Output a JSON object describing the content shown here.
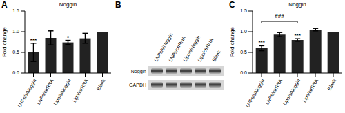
{
  "chart_data": [
    {
      "panel": "A",
      "type": "bar",
      "title": "Noggin",
      "y_label": "Fold change",
      "categories": [
        "LNPs/siNoggin",
        "LNPs/ctrRNA",
        "Lipo/siNoggin",
        "Lipo/ctrRNA",
        "Blank"
      ],
      "values": [
        0.5,
        0.85,
        0.74,
        0.84,
        1.0
      ],
      "errors": [
        0.22,
        0.17,
        0.05,
        0.12,
        0
      ],
      "annotations": [
        "***",
        null,
        "*",
        null,
        null
      ],
      "color": "#222222",
      "ylim": [
        0,
        1.5
      ],
      "yticks": [
        {
          "value": 0,
          "label": "0.0"
        },
        {
          "value": 0.5,
          "label": "0.5"
        },
        {
          "value": 1,
          "label": "1.0"
        },
        {
          "value": 1.5,
          "label": "1.5"
        }
      ]
    },
    {
      "panel": "B",
      "type": "blot",
      "lanes": [
        "LNPs/siNoggin",
        "LNPs/ctrRNA",
        "Lipo/siNoggin",
        "Lipo/ctrRNA",
        "Blank"
      ],
      "rows": [
        "Noggin",
        "GAPDH"
      ]
    },
    {
      "panel": "C",
      "type": "bar",
      "title": "Noggin",
      "y_label": "Fold change",
      "categories": [
        "LNPs/siNoggin",
        "LNPs/ctrRNA",
        "Lipo/siNoggin",
        "Lipo/ctrRNA",
        "Blank"
      ],
      "values": [
        0.6,
        0.93,
        0.8,
        1.05,
        1.0
      ],
      "errors": [
        0.06,
        0.05,
        0.03,
        0.03,
        0
      ],
      "annotations": [
        "***",
        null,
        "***",
        null,
        null
      ],
      "bracket": {
        "from": 0,
        "to": 2,
        "label": "###",
        "y": 1.25
      },
      "color": "#222222",
      "ylim": [
        0,
        1.5
      ],
      "yticks": [
        {
          "value": 0,
          "label": "0.0"
        },
        {
          "value": 0.5,
          "label": "0.5"
        },
        {
          "value": 1,
          "label": "1.0"
        },
        {
          "value": 1.5,
          "label": "1.5"
        }
      ]
    }
  ]
}
